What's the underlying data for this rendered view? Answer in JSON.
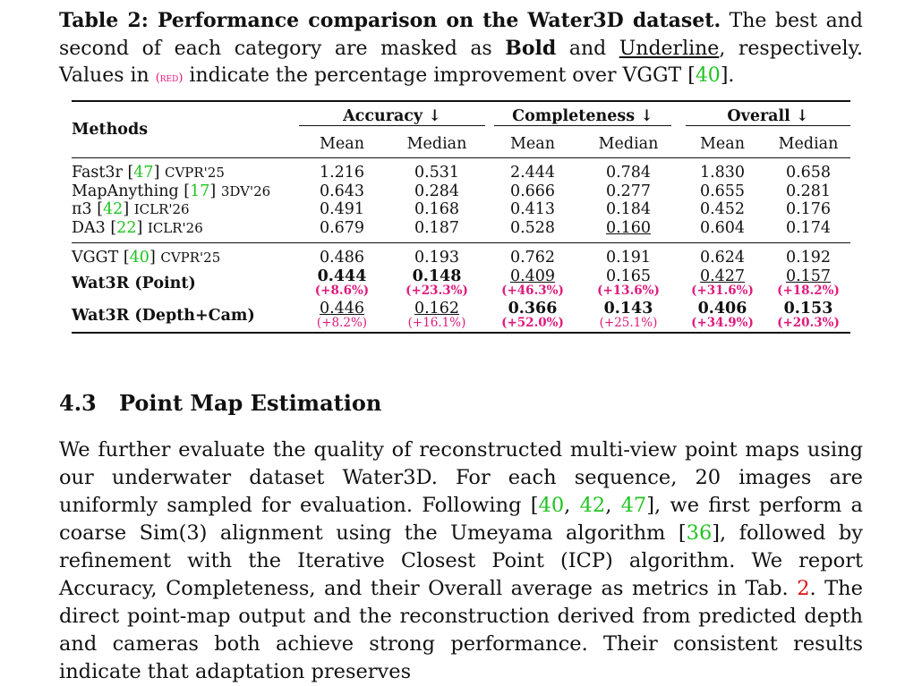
{
  "caption": {
    "label": "Table 2: Performance comparison on the Water3D dataset.",
    "text_1": " The best and second of each category are masked as ",
    "bold_word": "Bold",
    "text_2": " and ",
    "underline_word": "Underline",
    "text_3": ", respectively. Values in ",
    "red_tag": "(red)",
    "text_4": " indicate the percentage improvement over VGGT [",
    "ref": "40",
    "text_5": "]."
  },
  "table": {
    "methods_header": "Methods",
    "groups": [
      "Accuracy ↓",
      "Completeness ↓",
      "Overall ↓"
    ],
    "subcols": [
      "Mean",
      "Median",
      "Mean",
      "Median",
      "Mean",
      "Median"
    ],
    "baselines": [
      {
        "name": "Fast3r [",
        "ref": "47",
        "close": "]",
        "venue": "CVPR'25",
        "values": [
          "1.216",
          "0.531",
          "2.444",
          "0.784",
          "1.830",
          "0.658"
        ]
      },
      {
        "name": "MapAnything [",
        "ref": "17",
        "close": "]",
        "venue": "3DV'26",
        "values": [
          "0.643",
          "0.284",
          "0.666",
          "0.277",
          "0.655",
          "0.281"
        ]
      },
      {
        "name": "π3 [",
        "ref": "42",
        "close": "]",
        "venue": "ICLR'26",
        "values": [
          "0.491",
          "0.168",
          "0.413",
          "0.184",
          "0.452",
          "0.176"
        ]
      },
      {
        "name": "DA3 [",
        "ref": "22",
        "close": "]",
        "venue": "ICLR'26",
        "values": [
          "0.679",
          "0.187",
          "0.528",
          "0.160",
          "0.604",
          "0.174"
        ]
      }
    ],
    "vggt": {
      "name": "VGGT [",
      "ref": "40",
      "close": "]",
      "venue": "CVPR'25",
      "values": [
        "0.486",
        "0.193",
        "0.762",
        "0.191",
        "0.624",
        "0.192"
      ]
    },
    "ours_point": {
      "name": "Wat3R (Point)",
      "values": [
        "0.444",
        "0.148",
        "0.409",
        "0.165",
        "0.427",
        "0.157"
      ],
      "improvements": [
        "(+8.6%)",
        "(+23.3%)",
        "(+46.3%)",
        "(+13.6%)",
        "(+31.6%)",
        "(+18.2%)"
      ]
    },
    "ours_depth": {
      "name": "Wat3R (Depth+Cam)",
      "values": [
        "0.446",
        "0.162",
        "0.366",
        "0.143",
        "0.406",
        "0.153"
      ],
      "improvements": [
        "(+8.2%)",
        "(+16.1%)",
        "(+52.0%)",
        "(+25.1%)",
        "(+34.9%)",
        "(+20.3%)"
      ]
    }
  },
  "section": {
    "number": "4.3",
    "title": "Point Map Estimation"
  },
  "paragraph": {
    "p1": "We further evaluate the quality of reconstructed multi-view point maps using our underwater dataset Water3D. For each sequence, 20 images are uniformly sampled for evaluation. Following [",
    "ref_a": "40",
    "sep1": ", ",
    "ref_b": "42",
    "sep2": ", ",
    "ref_c": "47",
    "p2": "], we first perform a coarse Sim(3) alignment using the Umeyama algorithm [",
    "ref_d": "36",
    "p3": "], followed by refinement with the Iterative Closest Point (ICP) algorithm. We report Accuracy, Completeness, and their Overall average as metrics in Tab. ",
    "ref_tab": "2",
    "p4": ". The direct point-map output and the reconstruction derived from predicted depth and cameras both achieve strong performance. Their consistent results indicate that adaptation preserves"
  }
}
